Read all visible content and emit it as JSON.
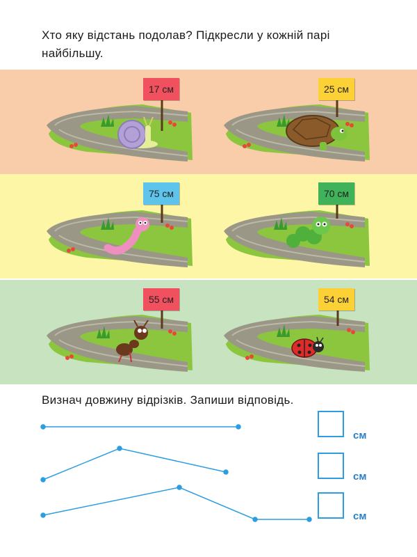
{
  "instruction_1": "Хто яку відстань подолав? Підкресли у кожній парі найбільшу.",
  "pairs": [
    {
      "left": {
        "distance": "17 см",
        "animal": "snail",
        "sign_color": "#f1505e"
      },
      "right": {
        "distance": "25 см",
        "animal": "turtle",
        "sign_color": "#fbd136"
      }
    },
    {
      "left": {
        "distance": "75 см",
        "animal": "worm",
        "sign_color": "#5ec4ec"
      },
      "right": {
        "distance": "70 см",
        "animal": "caterpillar",
        "sign_color": "#3fb25a"
      }
    },
    {
      "left": {
        "distance": "55 см",
        "animal": "ant",
        "sign_color": "#f1505e"
      },
      "right": {
        "distance": "54 см",
        "animal": "ladybug",
        "sign_color": "#fbd136"
      }
    }
  ],
  "instruction_2": "Визнач довжину відрізків. Запиши відповідь.",
  "answers": [
    {
      "unit": "см",
      "value": ""
    },
    {
      "unit": "см",
      "value": ""
    },
    {
      "unit": "см",
      "value": ""
    }
  ],
  "colors": {
    "line": "#2c9de0",
    "unit": "#2c80c8"
  }
}
